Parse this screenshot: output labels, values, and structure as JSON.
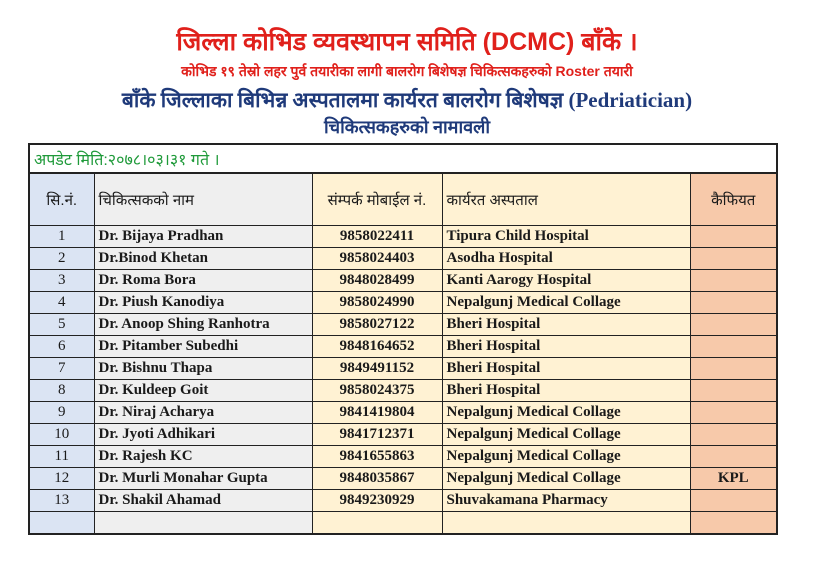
{
  "header": {
    "title": "जिल्ला कोभिड व्यवस्थापन समिति (DCMC) बाँके ।",
    "subtitle": "कोभिड १९ तेस्रो लहर पुर्व तयारीका लागी बालरोग बिशेषज्ञ चिकित्सकहरुको Roster तयारी",
    "line3": "बाँके जिल्लाका बिभिन्न अस्पतालमा कार्यरत बालरोग बिशेषज्ञ (Pedriatician)",
    "line4": "चिकित्सकहरुको नामावली"
  },
  "update": "अपडेट मिति:२०७८।०३।३१ गते ।",
  "columns": [
    "सि.नं.",
    "चिकित्सकको नाम",
    "संम्पर्क मोबाईल नं.",
    "कार्यरत अस्पताल",
    "कैफियत"
  ],
  "rows": [
    {
      "sn": "1",
      "name": "Dr. Bijaya Pradhan",
      "mobile": "9858022411",
      "hospital": "Tipura Child  Hospital",
      "remarks": ""
    },
    {
      "sn": "2",
      "name": "Dr.Binod Khetan",
      "mobile": "9858024403",
      "hospital": "Asodha Hospital",
      "remarks": ""
    },
    {
      "sn": "3",
      "name": "Dr. Roma Bora",
      "mobile": "9848028499",
      "hospital": "Kanti Aarogy Hospital",
      "remarks": ""
    },
    {
      "sn": "4",
      "name": "Dr. Piush Kanodiya",
      "mobile": "9858024990",
      "hospital": "Nepalgunj Medical Collage",
      "remarks": ""
    },
    {
      "sn": "5",
      "name": "Dr. Anoop Shing Ranhotra",
      "mobile": "9858027122",
      "hospital": "Bheri Hospital",
      "remarks": ""
    },
    {
      "sn": "6",
      "name": "Dr. Pitamber Subedhi",
      "mobile": "9848164652",
      "hospital": "Bheri Hospital",
      "remarks": ""
    },
    {
      "sn": "7",
      "name": "Dr. Bishnu Thapa",
      "mobile": "9849491152",
      "hospital": "Bheri Hospital",
      "remarks": ""
    },
    {
      "sn": "8",
      "name": "Dr. Kuldeep Goit",
      "mobile": "9858024375",
      "hospital": "Bheri Hospital",
      "remarks": ""
    },
    {
      "sn": "9",
      "name": "Dr. Niraj Acharya",
      "mobile": "9841419804",
      "hospital": "Nepalgunj Medical Collage",
      "remarks": ""
    },
    {
      "sn": "10",
      "name": "Dr. Jyoti Adhikari",
      "mobile": "9841712371",
      "hospital": "Nepalgunj Medical Collage",
      "remarks": ""
    },
    {
      "sn": "11",
      "name": "Dr. Rajesh KC",
      "mobile": "9841655863",
      "hospital": "Nepalgunj Medical Collage",
      "remarks": ""
    },
    {
      "sn": "12",
      "name": "Dr. Murli Monahar Gupta",
      "mobile": "9848035867",
      "hospital": "Nepalgunj Medical Collage",
      "remarks": "KPL"
    },
    {
      "sn": "13",
      "name": "Dr. Shakil Ahamad",
      "mobile": "9849230929",
      "hospital": "Shuvakamana Pharmacy",
      "remarks": ""
    },
    {
      "sn": "",
      "name": "",
      "mobile": "",
      "hospital": "",
      "remarks": ""
    }
  ],
  "colors": {
    "title_red": "#e0201b",
    "heading_blue": "#1f3a7a",
    "update_green": "#1f9a3a",
    "sn_col": "#dbe4f3",
    "name_col": "#efefef",
    "mobile_col": "#fff2d3",
    "remarks_col": "#f7c9aa"
  }
}
